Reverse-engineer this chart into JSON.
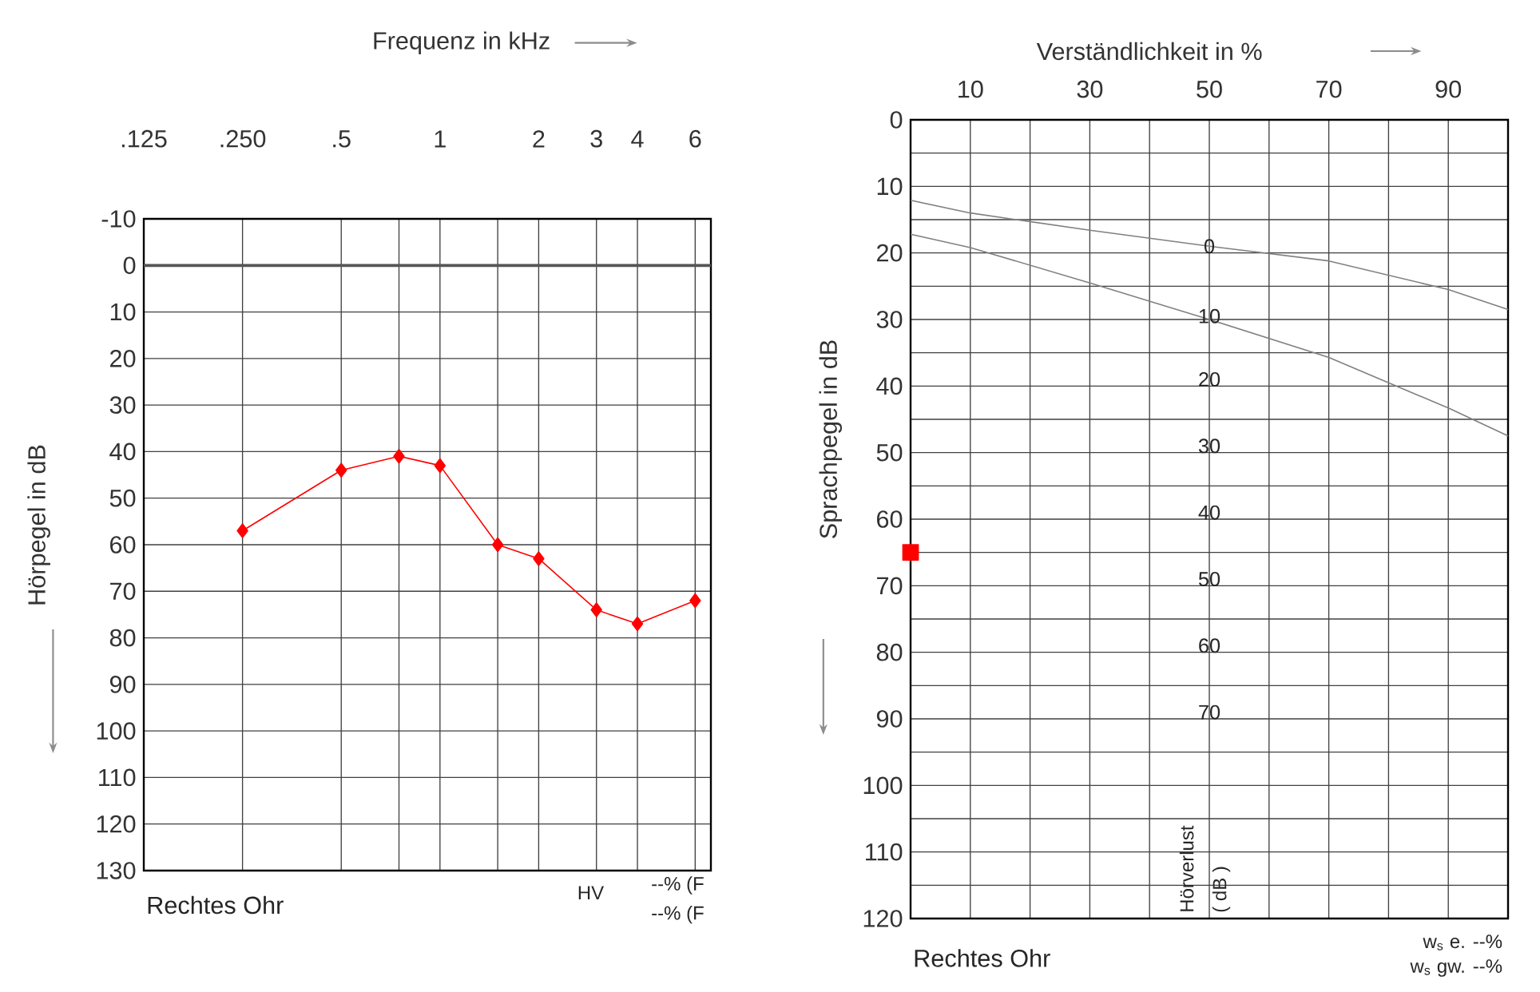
{
  "chart_data": [
    {
      "type": "line",
      "xlabel": "Frequenz in kHz",
      "ylabel": "Hörpegel in dB",
      "log": "x",
      "grid": true,
      "marker": "diamond",
      "line_style": "solid",
      "x": [
        0.25,
        0.5,
        0.75,
        1,
        1.5,
        2,
        3,
        4,
        6
      ],
      "series": [
        {
          "color": "#ff0000",
          "values": [
            57,
            44,
            41,
            43,
            60,
            63,
            74,
            77,
            72
          ]
        }
      ],
      "xlim": [
        0.125,
        6.7
      ],
      "xticks": [
        {
          "value": 0.125,
          "label": ".125"
        },
        {
          "value": 0.25,
          "label": ".250"
        },
        {
          "value": 0.5,
          "label": ".5"
        },
        {
          "value": 0.75,
          "label": null
        },
        1,
        {
          "value": 1.5,
          "label": null
        },
        2,
        3,
        4,
        6
      ],
      "ylim": [
        130,
        -10
      ],
      "yticks": [
        -10,
        0,
        10,
        20,
        30,
        40,
        50,
        60,
        70,
        80,
        90,
        100,
        110,
        120,
        130
      ],
      "ref_lines": [
        {
          "axis": "y",
          "value": 0,
          "color": "#555555"
        }
      ],
      "annotations": [
        "Rechtes Ohr",
        "HV",
        "--% (F",
        "--% (F"
      ]
    },
    {
      "type": "line",
      "xlabel": "Verständlichkeit in %",
      "ylabel": "Sprachpegel in dB",
      "grid": true,
      "series": [
        {
          "type": "line",
          "color": "#808080",
          "x": [
            0,
            10,
            30,
            50,
            70,
            90,
            100
          ],
          "values": [
            12.1,
            14,
            16.6,
            19,
            21.2,
            25.5,
            28.5
          ]
        },
        {
          "type": "line",
          "color": "#808080",
          "x": [
            0,
            10,
            30,
            50,
            70,
            90,
            100
          ],
          "values": [
            17.2,
            19.2,
            24.5,
            30,
            35.7,
            43.3,
            47.5
          ]
        },
        {
          "type": "scatter",
          "color": "#ff0000",
          "marker": "square",
          "x": [
            0
          ],
          "values": [
            65
          ]
        }
      ],
      "xlim": [
        0,
        100
      ],
      "xticks": [
        {
          "value": 0,
          "label": null
        },
        10,
        {
          "value": 20,
          "label": null
        },
        30,
        {
          "value": 40,
          "label": null
        },
        50,
        {
          "value": 60,
          "label": null
        },
        70,
        {
          "value": 80,
          "label": null
        },
        90,
        {
          "value": 100,
          "label": null
        }
      ],
      "ylim": [
        120,
        0
      ],
      "yticks": [
        0,
        {
          "value": 5,
          "label": null
        },
        10,
        {
          "value": 15,
          "label": null
        },
        20,
        {
          "value": 25,
          "label": null
        },
        30,
        {
          "value": 35,
          "label": null
        },
        40,
        {
          "value": 45,
          "label": null
        },
        50,
        {
          "value": 55,
          "label": null
        },
        60,
        {
          "value": 65,
          "label": null
        },
        70,
        {
          "value": 75,
          "label": null
        },
        80,
        {
          "value": 85,
          "label": null
        },
        90,
        {
          "value": 95,
          "label": null
        },
        100,
        {
          "value": 105,
          "label": null
        },
        110,
        {
          "value": 115,
          "label": null
        },
        120
      ],
      "annotations": [
        "0",
        "10",
        "20",
        "30",
        "40",
        "50",
        "60",
        "70",
        "Hörverlust",
        "( dB )",
        "Rechtes Ohr",
        "w$_{s}$ e.   --%",
        "w$_{s}$ gw. --%"
      ]
    }
  ]
}
